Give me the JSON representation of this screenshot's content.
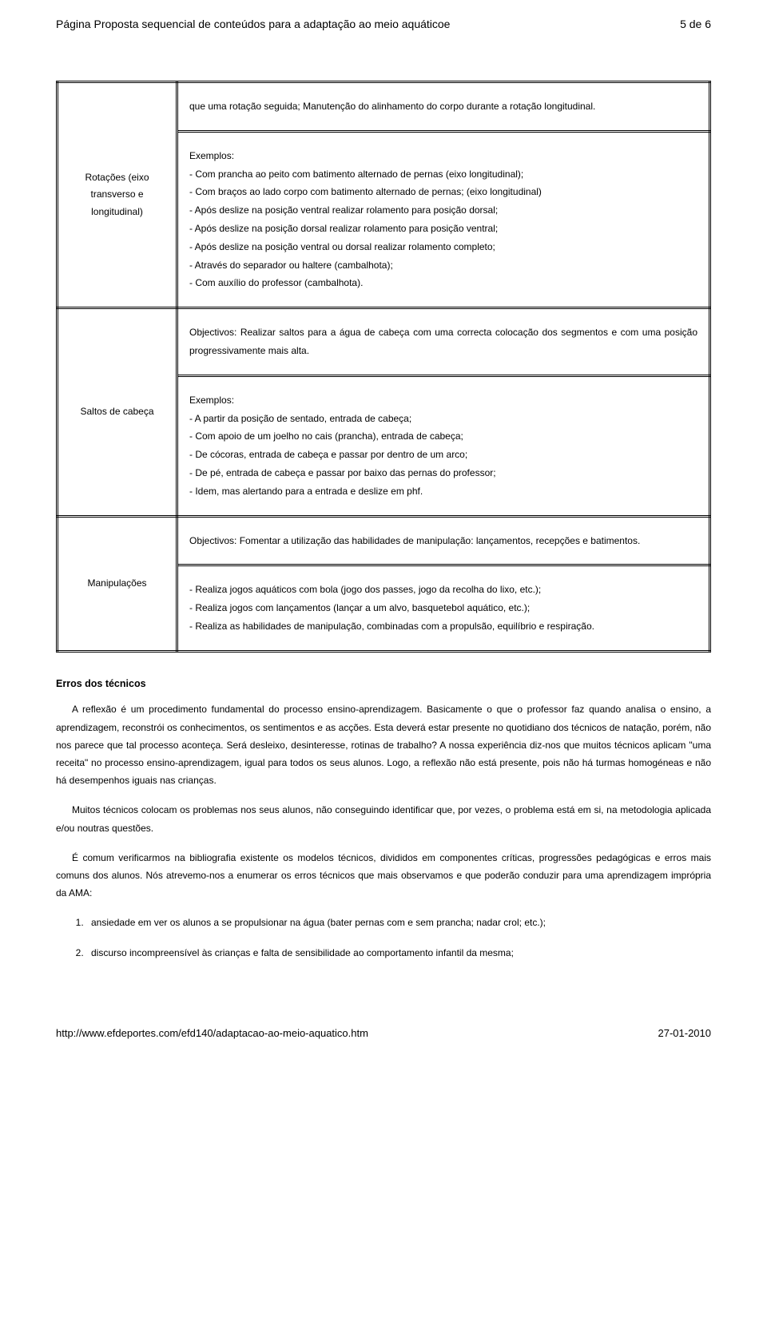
{
  "header": {
    "title": "Página Proposta sequencial de conteúdos para a adaptação ao meio aquáticoe",
    "page": "5 de 6"
  },
  "rows": [
    {
      "label": "",
      "content": "que uma rotação seguida; Manutenção do alinhamento do corpo durante a rotação longitudinal."
    },
    {
      "label": "Rotações (eixo transverso e longitudinal)",
      "content": "Exemplos:\n- Com prancha ao peito com batimento alternado de pernas (eixo longitudinal);\n- Com braços ao lado corpo com batimento alternado de pernas; (eixo longitudinal)\n- Após deslize na posição ventral realizar rolamento para posição dorsal;\n- Após deslize na posição dorsal realizar rolamento para posição ventral;\n- Após deslize na posição ventral ou dorsal realizar rolamento completo;\n- Através do separador ou haltere (cambalhota);\n- Com auxílio do professor (cambalhota)."
    },
    {
      "label": "",
      "content": "Objectivos: Realizar saltos para a água de cabeça com uma correcta colocação dos segmentos e com uma posição progressivamente mais alta."
    },
    {
      "label": "Saltos de cabeça",
      "content": "Exemplos:\n- A partir da posição de sentado, entrada de cabeça;\n- Com apoio de um joelho no cais (prancha), entrada de cabeça;\n- De cócoras, entrada de cabeça e passar por dentro de um arco;\n- De pé, entrada de cabeça e passar por baixo das pernas do professor;\n- Idem, mas alertando para a entrada e deslize em phf."
    },
    {
      "label": "",
      "content": "Objectivos: Fomentar a utilização das habilidades de manipulação: lançamentos, recepções e batimentos."
    },
    {
      "label": "Manipulações",
      "content": "- Realiza jogos aquáticos com bola (jogo dos passes, jogo da recolha do lixo, etc.);\n- Realiza jogos com lançamentos (lançar a um alvo, basquetebol aquático, etc.);\n- Realiza as habilidades de manipulação, combinadas com a propulsão, equilíbrio e respiração."
    }
  ],
  "section": {
    "title": "Erros dos técnicos",
    "paras": [
      "A reflexão é um procedimento fundamental do processo ensino-aprendizagem. Basicamente o que o professor faz quando analisa o ensino, a aprendizagem, reconstrói os conhecimentos, os sentimentos e as acções. Esta deverá estar presente no quotidiano dos técnicos de natação, porém, não nos parece que tal processo aconteça. Será desleixo, desinteresse, rotinas de trabalho? A nossa experiência diz-nos que muitos técnicos aplicam \"uma receita\" no processo ensino-aprendizagem, igual para todos os seus alunos. Logo, a reflexão não está presente, pois não há turmas homogéneas e não há desempenhos iguais nas crianças.",
      "Muitos técnicos colocam os problemas nos seus alunos, não conseguindo identificar que, por vezes, o problema está em si, na metodologia aplicada e/ou noutras questões.",
      "É comum verificarmos na bibliografia existente os modelos técnicos, divididos em componentes críticas, progressões pedagógicas e erros mais comuns dos alunos. Nós atrevemo-nos a enumerar os erros técnicos que mais observamos e que poderão conduzir para uma aprendizagem imprópria da AMA:"
    ],
    "items": [
      "ansiedade em ver os alunos a se propulsionar na água (bater pernas com e sem prancha; nadar crol; etc.);",
      "discurso incompreensível às crianças e falta de sensibilidade ao comportamento infantil da mesma;"
    ]
  },
  "footer": {
    "url": "http://www.efdeportes.com/efd140/adaptacao-ao-meio-aquatico.htm",
    "date": "27-01-2010"
  }
}
